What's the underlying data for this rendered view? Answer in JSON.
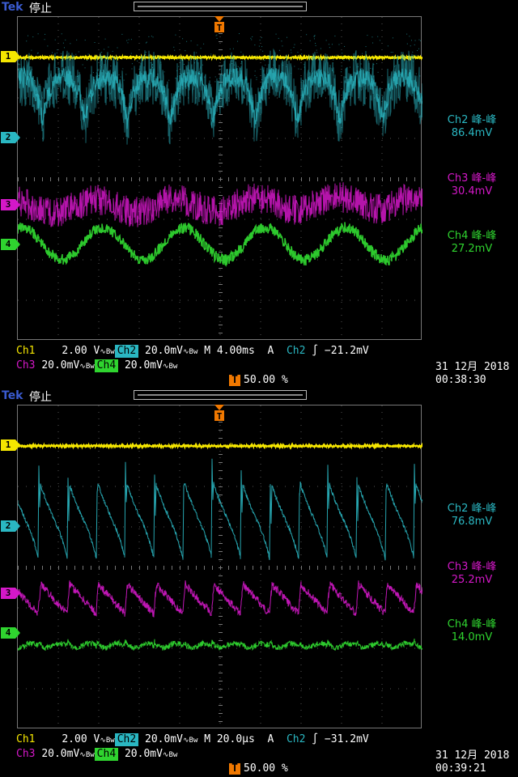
{
  "screens": [
    {
      "brand": "Tek",
      "status": "停止",
      "measurements": [
        {
          "ch": "Ch2 峰-峰",
          "value": "86.4mV"
        },
        {
          "ch": "Ch3 峰-峰",
          "value": "30.4mV"
        },
        {
          "ch": "Ch4 峰-峰",
          "value": "27.2mV"
        }
      ],
      "ch1_label": "Ch1",
      "ch1_scale": "2.00 V",
      "ch2_label": "Ch2",
      "ch2_scale": "20.0mV",
      "ch3_label": "Ch3",
      "ch3_scale": "20.0mV",
      "ch4_label": "Ch4",
      "ch4_scale": "20.0mV",
      "bw_mark": "∿Bw",
      "timebase": "M 4.00ms",
      "trigger_mode": "A",
      "trigger_src": "Ch2",
      "trigger_level": "∫ −21.2mV",
      "trigger_pos": "50.00 %",
      "date": "31 12月 2018",
      "time": "00:38:30",
      "markers": [
        "1",
        "2",
        "3",
        "4"
      ]
    },
    {
      "brand": "Tek",
      "status": "停止",
      "measurements": [
        {
          "ch": "Ch2 峰-峰",
          "value": "76.8mV"
        },
        {
          "ch": "Ch3 峰-峰",
          "value": "25.2mV"
        },
        {
          "ch": "Ch4 峰-峰",
          "value": "14.0mV"
        }
      ],
      "ch1_label": "Ch1",
      "ch1_scale": "2.00 V",
      "ch2_label": "Ch2",
      "ch2_scale": "20.0mV",
      "ch3_label": "Ch3",
      "ch3_scale": "20.0mV",
      "ch4_label": "Ch4",
      "ch4_scale": "20.0mV",
      "bw_mark": "∿Bw",
      "timebase": "M 20.0µs",
      "trigger_mode": "A",
      "trigger_src": "Ch2",
      "trigger_level": "∫ −31.2mV",
      "trigger_pos": "50.00 %",
      "date": "31 12月 2018",
      "time": "00:39:21",
      "markers": [
        "1",
        "2",
        "3",
        "4"
      ]
    }
  ],
  "colors": {
    "ch1": "#f5e600",
    "ch2": "#2ab7c2",
    "ch3": "#d418c8",
    "ch4": "#2fd42f",
    "trigger": "#f07800"
  }
}
